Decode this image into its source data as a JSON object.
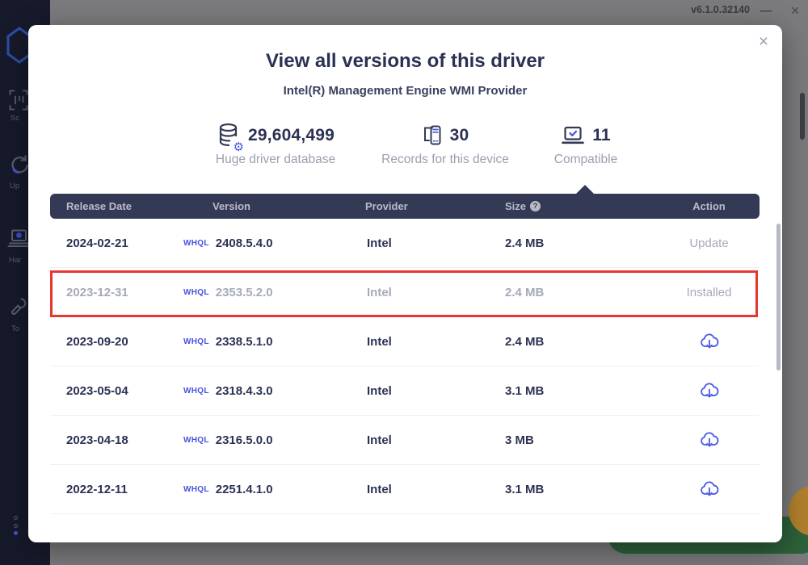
{
  "window": {
    "version": "v6.1.0.32140",
    "minimize_icon": "—",
    "close_icon": "×"
  },
  "sidebar": {
    "items": [
      {
        "icon": "scan-icon",
        "label": "Sc"
      },
      {
        "icon": "update-icon",
        "label": "Up"
      },
      {
        "icon": "hardware-icon",
        "label": "Har"
      },
      {
        "icon": "tools-icon",
        "label": "To"
      }
    ]
  },
  "modal": {
    "close_icon": "×",
    "title": "View all versions of this driver",
    "subtitle": "Intel(R) Management Engine WMI Provider",
    "stats": [
      {
        "icon": "database-icon",
        "value": "29,604,499",
        "label": "Huge driver database"
      },
      {
        "icon": "device-records-icon",
        "value": "30",
        "label": "Records for this device"
      },
      {
        "icon": "compatible-check-icon",
        "value": "11",
        "label": "Compatible"
      }
    ],
    "table": {
      "headers": {
        "release_date": "Release Date",
        "version": "Version",
        "provider": "Provider",
        "size": "Size",
        "action": "Action"
      },
      "size_help_icon": "?",
      "rows": [
        {
          "date": "2024-02-21",
          "badge": "WHQL",
          "version": "2408.5.4.0",
          "provider": "Intel",
          "size": "2.4 MB",
          "action": "Update",
          "muted": false,
          "highlighted": false
        },
        {
          "date": "2023-12-31",
          "badge": "WHQL",
          "version": "2353.5.2.0",
          "provider": "Intel",
          "size": "2.4 MB",
          "action": "Installed",
          "muted": true,
          "highlighted": true
        },
        {
          "date": "2023-09-20",
          "badge": "WHQL",
          "version": "2338.5.1.0",
          "provider": "Intel",
          "size": "2.4 MB",
          "action": "download",
          "muted": false,
          "highlighted": false
        },
        {
          "date": "2023-05-04",
          "badge": "WHQL",
          "version": "2318.4.3.0",
          "provider": "Intel",
          "size": "3.1 MB",
          "action": "download",
          "muted": false,
          "highlighted": false
        },
        {
          "date": "2023-04-18",
          "badge": "WHQL",
          "version": "2316.5.0.0",
          "provider": "Intel",
          "size": "3 MB",
          "action": "download",
          "muted": false,
          "highlighted": false
        },
        {
          "date": "2022-12-11",
          "badge": "WHQL",
          "version": "2251.4.1.0",
          "provider": "Intel",
          "size": "3.1 MB",
          "action": "download",
          "muted": false,
          "highlighted": false
        }
      ]
    }
  },
  "colors": {
    "accent_blue": "#4453e0",
    "highlight_red": "#e5382e",
    "table_header_bg": "#343a55",
    "title_navy": "#2b3153",
    "muted_gray": "#a6aab8",
    "green_button": "#2d6139",
    "orange_badge": "#b1802d"
  }
}
